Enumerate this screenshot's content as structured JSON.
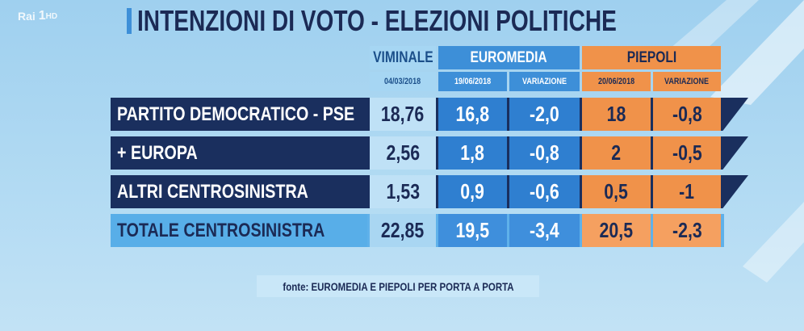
{
  "header": {
    "logo": "Rai",
    "channel": "1",
    "quality": "HD",
    "title": "INTENZIONI DI VOTO - ELEZIONI POLITICHE"
  },
  "table": {
    "groups": [
      {
        "name": "VIMINALE",
        "columns": [
          "04/03/2018"
        ]
      },
      {
        "name": "EUROMEDIA",
        "columns": [
          "19/06/2018",
          "VARIAZIONE"
        ]
      },
      {
        "name": "PIEPOLI",
        "columns": [
          "20/06/2018",
          "VARIAZIONE"
        ]
      }
    ],
    "rows": [
      [
        "PARTITO DEMOCRATICO - PSE",
        "18,76",
        "16,8",
        "-2,0",
        "18",
        "-0,8"
      ],
      [
        "+ EUROPA",
        "2,56",
        "1,8",
        "-0,8",
        "2",
        "-0,5"
      ],
      [
        "ALTRI CENTROSINISTRA",
        "1,53",
        "0,9",
        "-0,6",
        "0,5",
        "-1"
      ],
      [
        "TOTALE CENTROSINISTRA",
        "22,85",
        "19,5",
        "-3,4",
        "20,5",
        "-2,3"
      ]
    ]
  },
  "source": "fonte: EUROMEDIA E PIEPOLI PER PORTA A PORTA"
}
